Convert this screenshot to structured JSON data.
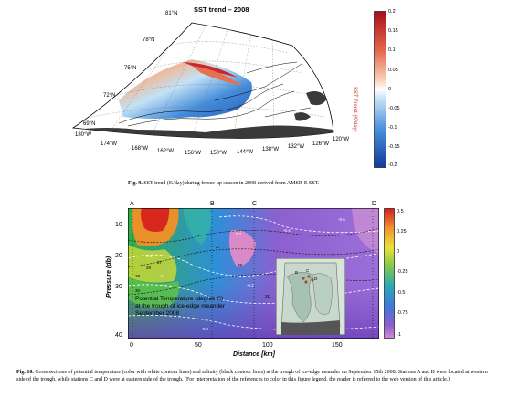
{
  "fig9": {
    "title": "SST trend – 2008",
    "colorbar": {
      "label": "SST Trend (K/day)",
      "ticks": [
        "0.2",
        "0.15",
        "0.1",
        "0.05",
        "0",
        "-0.05",
        "-0.1",
        "-0.15",
        "-0.2"
      ]
    },
    "lat_labels": [
      "81°N",
      "78°N",
      "75°N",
      "72°N",
      "69°N"
    ],
    "lon_labels": [
      "180°W",
      "174°W",
      "168°W",
      "162°W",
      "156°W",
      "150°W",
      "144°W",
      "138°W",
      "132°W",
      "126°W",
      "120°W"
    ],
    "caption_label": "Fig. 9.",
    "caption_text": "SST trend (K/day) during freeze-up season in 2008 derived from AMSR-E SST."
  },
  "fig10": {
    "stations": [
      "A",
      "B",
      "C",
      "D"
    ],
    "ylabel": "Pressure (db)",
    "xlabel": "Distance [km]",
    "y_ticks": [
      "10",
      "20",
      "30",
      "40"
    ],
    "x_ticks": [
      "0",
      "50",
      "100",
      "150"
    ],
    "colorbar_ticks": [
      "0.5",
      "0.25",
      "0",
      "-0.25",
      "-0.5",
      "-0.75",
      "-1"
    ],
    "note_lines": [
      "Potential Temperature (degree C)",
      "at the trough of ice-edge meander",
      "September 2008"
    ],
    "contour_labels": [
      "0.2",
      "0.2",
      "0",
      "-0.2",
      "-0.4",
      "-0.6",
      "-0.8",
      "27",
      "27",
      "28",
      "28",
      "29",
      "30",
      "31"
    ],
    "inset_labels": [
      "B",
      "C",
      "D"
    ],
    "caption_label": "Fig. 10.",
    "caption_text": "Cross sections of potential temperature (color with white contour lines) and salinity (black contour lines) at the trough of ice-edge meander on September 15th 2008. Stations A and B were located at western side of the trough, while stations C and D were at eastern side of the trough. (For interpretation of the references to color in this figure legend, the reader is referred to the web version of this article.)"
  },
  "colors": {
    "warm": "#c8282a",
    "cool": "#2a6fd0",
    "neutral": "#ffffff",
    "land": "#3a3a3a"
  }
}
